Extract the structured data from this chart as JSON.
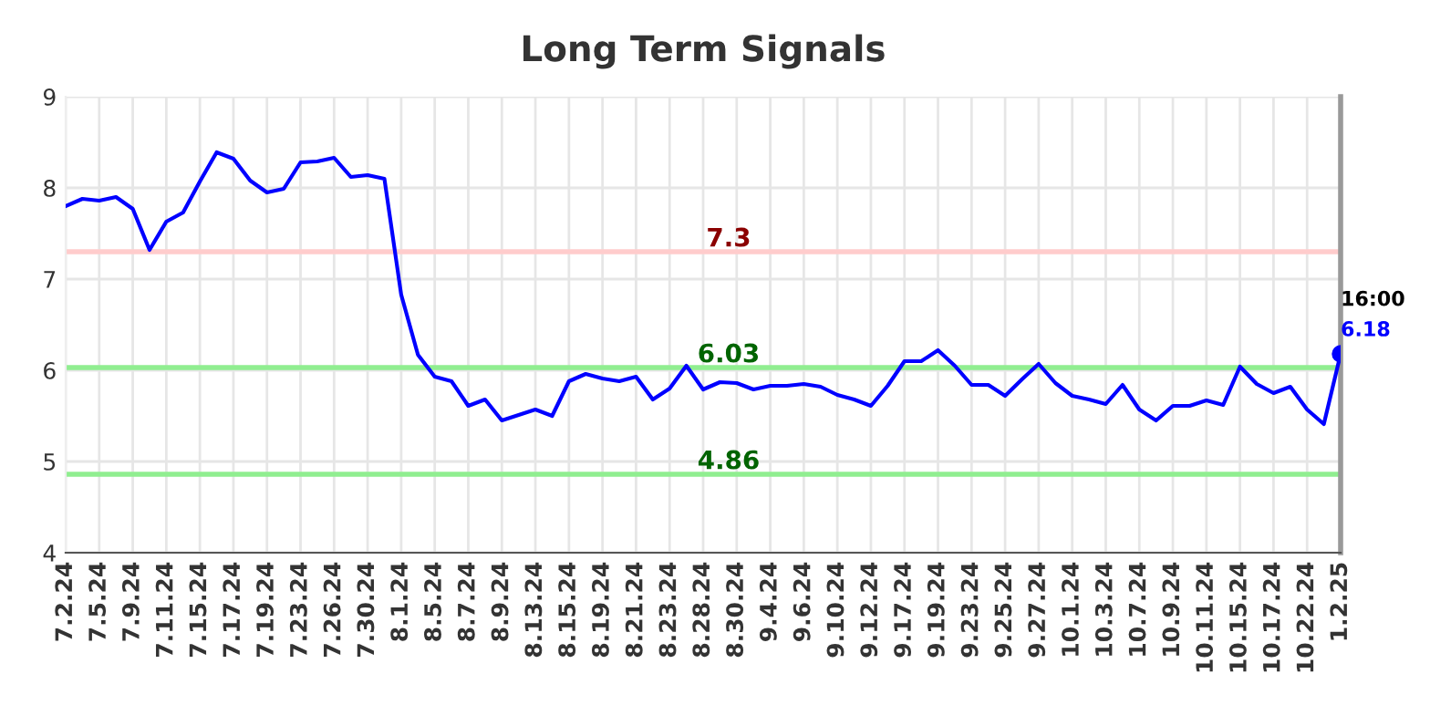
{
  "chart_data": {
    "type": "line",
    "title": "Long Term Signals",
    "categories": [
      "7.2.24",
      null,
      "7.5.24",
      null,
      "7.9.24",
      null,
      "7.11.24",
      null,
      "7.15.24",
      null,
      "7.17.24",
      null,
      "7.19.24",
      null,
      "7.23.24",
      null,
      "7.26.24",
      null,
      "7.30.24",
      null,
      "8.1.24",
      null,
      "8.5.24",
      null,
      "8.7.24",
      null,
      "8.9.24",
      null,
      "8.13.24",
      null,
      "8.15.24",
      null,
      "8.19.24",
      null,
      "8.21.24",
      null,
      "8.23.24",
      null,
      "8.28.24",
      null,
      "8.30.24",
      null,
      "9.4.24",
      null,
      "9.6.24",
      null,
      "9.10.24",
      null,
      "9.12.24",
      null,
      "9.17.24",
      null,
      "9.19.24",
      null,
      "9.23.24",
      null,
      "9.25.24",
      null,
      "9.27.24",
      null,
      "10.1.24",
      null,
      "10.3.24",
      null,
      "10.7.24",
      null,
      "10.9.24",
      null,
      "10.11.24",
      null,
      "10.15.24",
      null,
      "10.17.24",
      null,
      "10.22.24",
      null,
      "1.2.25"
    ],
    "series": [
      {
        "color": "#0000ff",
        "values": [
          7.8,
          7.88,
          7.86,
          7.9,
          7.77,
          7.32,
          7.63,
          7.73,
          8.07,
          8.39,
          8.32,
          8.08,
          7.95,
          7.99,
          8.28,
          8.29,
          8.33,
          8.12,
          8.14,
          8.1,
          6.83,
          6.17,
          5.93,
          5.88,
          5.61,
          5.68,
          5.45,
          5.51,
          5.57,
          5.5,
          5.88,
          5.96,
          5.91,
          5.88,
          5.93,
          5.68,
          5.8,
          6.05,
          5.79,
          5.87,
          5.86,
          5.79,
          5.83,
          5.83,
          5.85,
          5.82,
          5.73,
          5.68,
          5.61,
          5.83,
          6.1,
          6.1,
          6.22,
          6.05,
          5.84,
          5.84,
          5.72,
          5.9,
          6.07,
          5.86,
          5.72,
          5.68,
          5.63,
          5.84,
          5.57,
          5.45,
          5.61,
          5.61,
          5.67,
          5.62,
          6.04,
          5.85,
          5.75,
          5.82,
          5.57,
          5.41,
          6.18
        ],
        "value_labels": [
          null,
          null,
          null,
          null,
          null,
          null,
          null,
          null,
          null,
          null,
          null,
          null,
          null,
          null,
          null,
          null,
          null,
          null,
          null,
          null,
          null,
          null,
          null,
          null,
          null,
          null,
          null,
          null,
          null,
          null,
          null,
          null,
          null,
          null,
          null,
          null,
          null,
          null,
          null,
          null,
          null,
          null,
          null,
          null,
          null,
          null,
          null,
          null,
          null,
          null,
          null,
          null,
          null,
          null,
          null,
          null,
          null,
          null,
          null,
          null,
          null,
          null,
          null,
          null,
          null,
          null,
          null,
          null,
          null,
          null,
          null,
          null,
          null,
          null,
          null,
          null,
          "6.18"
        ]
      }
    ],
    "ylim": [
      4,
      9
    ],
    "yticks": [
      4,
      5,
      6,
      7,
      8,
      9
    ],
    "grid": true,
    "ref_lines": [
      {
        "axis": "y",
        "value": 7.3,
        "label": "7.3",
        "color": "#ffcccc"
      },
      {
        "axis": "y",
        "value": 6.03,
        "label": "6.03",
        "color": "#90ee90"
      },
      {
        "axis": "y",
        "value": 4.86,
        "label": "4.86",
        "color": "#90ee90"
      }
    ],
    "annotations": [
      {
        "text": "16:00",
        "x": "1.2.25",
        "y": 6.18
      }
    ]
  }
}
